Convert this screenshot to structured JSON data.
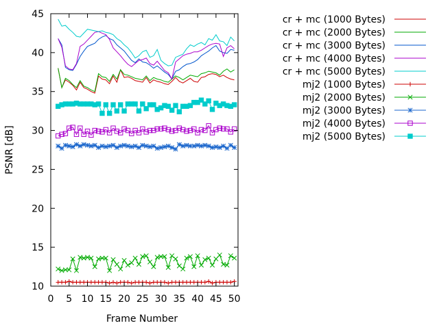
{
  "chart_data": {
    "type": "line",
    "title": "",
    "xlabel": "Frame Number",
    "ylabel": "PSNR [dB]",
    "xlim": [
      0,
      51
    ],
    "ylim": [
      10,
      45
    ],
    "xticks": [
      0,
      5,
      10,
      15,
      20,
      25,
      30,
      35,
      40,
      45,
      50
    ],
    "yticks": [
      10,
      15,
      20,
      25,
      30,
      35,
      40,
      45
    ],
    "grid": false,
    "legend_position": "top-right, outside plot",
    "x": [
      2,
      3,
      4,
      5,
      6,
      7,
      8,
      9,
      10,
      11,
      12,
      13,
      14,
      15,
      16,
      17,
      18,
      19,
      20,
      21,
      22,
      23,
      24,
      25,
      26,
      27,
      28,
      29,
      30,
      31,
      32,
      33,
      34,
      35,
      36,
      37,
      38,
      39,
      40,
      41,
      42,
      43,
      44,
      45,
      46,
      47,
      48,
      49,
      50
    ],
    "series": [
      {
        "name": "cr + mc (1000 Bytes)",
        "color": "#cc0000",
        "marker": "none",
        "values": [
          38.0,
          35.5,
          36.5,
          36.2,
          35.8,
          35.2,
          36.2,
          35.5,
          35.3,
          35.0,
          34.8,
          37.0,
          36.6,
          36.5,
          36.0,
          37.0,
          36.2,
          37.8,
          36.8,
          36.9,
          36.7,
          36.4,
          36.3,
          36.2,
          36.8,
          36.1,
          36.5,
          36.3,
          36.2,
          36.0,
          35.9,
          36.3,
          36.8,
          36.3,
          36.1,
          36.4,
          36.7,
          36.3,
          36.2,
          36.8,
          36.9,
          37.2,
          37.3,
          37.2,
          36.9,
          37.1,
          36.8,
          36.6,
          36.5
        ]
      },
      {
        "name": "cr + mc (2000 Bytes)",
        "color": "#00aa00",
        "marker": "none",
        "values": [
          38.0,
          35.5,
          36.7,
          36.4,
          35.9,
          35.5,
          36.4,
          35.7,
          35.5,
          35.2,
          35.0,
          37.3,
          36.9,
          36.8,
          36.3,
          37.2,
          36.6,
          37.8,
          37.2,
          37.1,
          36.9,
          36.7,
          36.6,
          36.5,
          37.0,
          36.4,
          36.8,
          36.6,
          36.5,
          36.3,
          36.2,
          36.6,
          37.0,
          36.8,
          36.5,
          36.8,
          37.1,
          37.0,
          36.9,
          37.3,
          37.4,
          37.6,
          37.5,
          37.4,
          37.1,
          37.6,
          37.9,
          37.5,
          37.8
        ]
      },
      {
        "name": "cr + mc (3000 Bytes)",
        "color": "#0055cc",
        "marker": "none",
        "values": [
          41.8,
          41.0,
          38.1,
          37.8,
          37.7,
          38.5,
          39.5,
          40.2,
          40.8,
          41.0,
          41.2,
          41.7,
          42.0,
          42.2,
          41.8,
          41.6,
          41.0,
          40.6,
          40.2,
          39.6,
          39.0,
          38.7,
          39.2,
          38.8,
          38.7,
          38.4,
          38.0,
          38.3,
          37.9,
          37.5,
          37.2,
          36.6,
          37.6,
          37.8,
          38.2,
          38.5,
          38.6,
          38.8,
          39.1,
          39.6,
          39.9,
          40.2,
          40.6,
          40.9,
          40.2,
          40.0,
          39.9,
          40.4,
          40.3
        ]
      },
      {
        "name": "cr + mc (4000 Bytes)",
        "color": "#aa00cc",
        "marker": "none",
        "values": [
          41.8,
          40.7,
          38.3,
          37.9,
          37.8,
          38.6,
          40.8,
          41.1,
          41.6,
          42.1,
          42.6,
          42.7,
          42.5,
          42.3,
          41.7,
          40.6,
          40.1,
          39.6,
          39.0,
          38.5,
          38.2,
          38.6,
          39.0,
          39.1,
          39.3,
          38.6,
          38.4,
          38.9,
          38.3,
          37.7,
          37.4,
          36.6,
          38.8,
          39.2,
          39.6,
          39.8,
          39.9,
          40.1,
          40.1,
          40.3,
          40.6,
          40.9,
          41.1,
          41.2,
          41.1,
          39.5,
          40.6,
          40.9,
          40.5
        ]
      },
      {
        "name": "cr + mc (5000 Bytes)",
        "color": "#00cccc",
        "marker": "none",
        "values": [
          44.3,
          43.4,
          43.5,
          43.0,
          42.6,
          42.1,
          42.0,
          42.5,
          43.0,
          42.9,
          42.8,
          42.7,
          42.8,
          42.6,
          42.5,
          42.3,
          41.8,
          41.5,
          41.0,
          40.6,
          40.0,
          39.3,
          39.6,
          40.1,
          40.3,
          39.4,
          39.6,
          40.4,
          39.0,
          38.6,
          38.3,
          38.4,
          39.4,
          39.6,
          39.8,
          40.5,
          41.0,
          40.8,
          41.1,
          41.3,
          41.0,
          41.8,
          41.6,
          42.3,
          41.5,
          41.4,
          40.9,
          42.0,
          41.5
        ]
      },
      {
        "name": "mj2 (1000 Bytes)",
        "color": "#cc0000",
        "marker": "plus",
        "values": [
          10.5,
          10.5,
          10.5,
          10.6,
          10.5,
          10.5,
          10.5,
          10.5,
          10.5,
          10.5,
          10.5,
          10.5,
          10.5,
          10.5,
          10.4,
          10.5,
          10.4,
          10.5,
          10.5,
          10.5,
          10.4,
          10.5,
          10.5,
          10.5,
          10.5,
          10.4,
          10.5,
          10.5,
          10.5,
          10.5,
          10.4,
          10.5,
          10.5,
          10.5,
          10.5,
          10.5,
          10.5,
          10.5,
          10.5,
          10.5,
          10.5,
          10.6,
          10.4,
          10.5,
          10.5,
          10.5,
          10.5,
          10.5,
          10.6
        ]
      },
      {
        "name": "mj2 (2000 Bytes)",
        "color": "#00aa00",
        "marker": "x",
        "values": [
          12.2,
          12.0,
          12.1,
          12.1,
          13.5,
          12.0,
          13.7,
          13.6,
          13.7,
          13.6,
          12.5,
          13.5,
          13.6,
          13.6,
          12.0,
          13.4,
          12.8,
          12.2,
          13.3,
          12.7,
          13.0,
          13.6,
          12.8,
          13.8,
          13.9,
          13.1,
          12.5,
          13.7,
          13.8,
          13.8,
          12.4,
          13.9,
          13.5,
          12.6,
          12.2,
          13.6,
          13.8,
          12.5,
          13.9,
          12.7,
          13.4,
          13.6,
          12.7,
          13.5,
          14.0,
          12.8,
          12.7,
          13.9,
          13.6
        ]
      },
      {
        "name": "mj2 (3000 Bytes)",
        "color": "#1a66cc",
        "marker": "star",
        "values": [
          28.0,
          27.7,
          28.1,
          28.0,
          27.9,
          28.2,
          28.0,
          28.2,
          28.1,
          28.0,
          28.1,
          27.8,
          28.0,
          27.9,
          28.0,
          28.1,
          27.8,
          28.0,
          28.1,
          28.0,
          27.9,
          28.0,
          27.8,
          28.1,
          28.0,
          27.9,
          28.0,
          27.7,
          27.8,
          27.9,
          28.0,
          27.8,
          27.6,
          28.2,
          28.0,
          28.1,
          28.0,
          28.0,
          28.1,
          28.0,
          28.1,
          28.0,
          27.8,
          27.9,
          27.8,
          28.0,
          27.7,
          28.1,
          27.8
        ]
      },
      {
        "name": "mj2 (4000 Bytes)",
        "color": "#aa00cc",
        "marker": "square",
        "values": [
          29.3,
          29.5,
          29.6,
          30.3,
          30.4,
          29.5,
          30.3,
          29.5,
          29.9,
          29.4,
          30.0,
          29.9,
          29.8,
          30.1,
          29.7,
          30.3,
          29.9,
          29.7,
          30.2,
          30.0,
          29.6,
          30.0,
          29.7,
          30.2,
          29.8,
          30.0,
          30.0,
          30.2,
          30.2,
          30.3,
          30.1,
          29.9,
          30.0,
          30.3,
          30.1,
          29.9,
          30.0,
          30.2,
          29.7,
          30.1,
          30.0,
          30.6,
          29.7,
          30.1,
          30.3,
          30.2,
          30.2,
          29.8,
          30.2
        ]
      },
      {
        "name": "mj2 (5000 Bytes)",
        "color": "#00cccc",
        "marker": "filled-square",
        "values": [
          33.1,
          33.3,
          33.4,
          33.4,
          33.4,
          33.5,
          33.4,
          33.4,
          33.4,
          33.4,
          33.3,
          33.4,
          32.2,
          33.3,
          32.2,
          33.3,
          32.5,
          33.3,
          32.5,
          33.4,
          33.4,
          33.4,
          32.5,
          33.4,
          32.8,
          33.3,
          33.3,
          32.7,
          32.9,
          33.2,
          33.1,
          32.6,
          33.2,
          32.4,
          33.1,
          33.1,
          33.2,
          33.6,
          33.6,
          33.9,
          33.4,
          33.8,
          32.7,
          33.5,
          33.2,
          33.4,
          33.2,
          33.1,
          33.3
        ]
      }
    ]
  }
}
